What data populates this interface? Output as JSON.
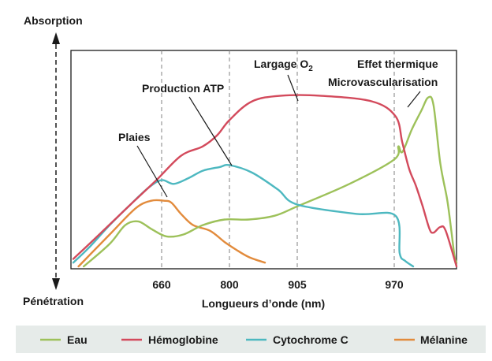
{
  "chart_data": {
    "type": "line",
    "y_top_label": "Absorption",
    "y_bottom_label": "Pénétration",
    "xlabel": "Longueurs d’onde (nm)",
    "x_ticks": [
      "660",
      "800",
      "905",
      "970"
    ],
    "grid": "dashed vertical lines at tick positions",
    "annotations": [
      {
        "text": "Plaies"
      },
      {
        "text": "Production ATP"
      },
      {
        "text": "Largage O",
        "sub": "2"
      },
      {
        "text": "Effet thermique"
      },
      {
        "text": "Microvascularisation"
      }
    ],
    "legend_position": "bottom",
    "series": [
      {
        "name": "Eau",
        "color": "#9dc15a",
        "points": [
          [
            510,
            0.0
          ],
          [
            560,
            0.12
          ],
          [
            590,
            0.22
          ],
          [
            615,
            0.24
          ],
          [
            640,
            0.2
          ],
          [
            670,
            0.16
          ],
          [
            705,
            0.17
          ],
          [
            745,
            0.22
          ],
          [
            790,
            0.25
          ],
          [
            830,
            0.25
          ],
          [
            870,
            0.27
          ],
          [
            905,
            0.32
          ],
          [
            940,
            0.44
          ],
          [
            970,
            0.57
          ],
          [
            985,
            0.64
          ],
          [
            1000,
            0.61
          ],
          [
            1035,
            0.73
          ],
          [
            1070,
            0.83
          ],
          [
            1095,
            0.9
          ],
          [
            1115,
            0.86
          ],
          [
            1140,
            0.55
          ],
          [
            1165,
            0.36
          ],
          [
            1180,
            0.2
          ],
          [
            1192,
            0.06
          ],
          [
            1200,
            0.02
          ]
        ]
      },
      {
        "name": "Hémoglobine",
        "color": "#d34a5c",
        "points": [
          [
            490,
            0.04
          ],
          [
            540,
            0.17
          ],
          [
            600,
            0.33
          ],
          [
            650,
            0.46
          ],
          [
            700,
            0.59
          ],
          [
            745,
            0.64
          ],
          [
            775,
            0.7
          ],
          [
            800,
            0.78
          ],
          [
            835,
            0.88
          ],
          [
            880,
            0.91
          ],
          [
            920,
            0.91
          ],
          [
            955,
            0.88
          ],
          [
            975,
            0.8
          ],
          [
            1000,
            0.66
          ],
          [
            1025,
            0.52
          ],
          [
            1050,
            0.43
          ],
          [
            1075,
            0.32
          ],
          [
            1100,
            0.2
          ],
          [
            1115,
            0.18
          ],
          [
            1140,
            0.21
          ],
          [
            1160,
            0.19
          ],
          [
            1200,
            0.0
          ]
        ]
      },
      {
        "name": "Cytochrome C",
        "color": "#4db8c0",
        "points": [
          [
            490,
            0.02
          ],
          [
            520,
            0.1
          ],
          [
            560,
            0.22
          ],
          [
            600,
            0.33
          ],
          [
            635,
            0.42
          ],
          [
            660,
            0.46
          ],
          [
            685,
            0.44
          ],
          [
            715,
            0.47
          ],
          [
            745,
            0.51
          ],
          [
            780,
            0.53
          ],
          [
            800,
            0.54
          ],
          [
            835,
            0.5
          ],
          [
            875,
            0.41
          ],
          [
            905,
            0.33
          ],
          [
            945,
            0.28
          ],
          [
            975,
            0.27
          ],
          [
            990,
            0.07
          ],
          [
            1010,
            0.03
          ],
          [
            1040,
            0.0
          ]
        ]
      },
      {
        "name": "Mélanine",
        "color": "#e28b3c",
        "points": [
          [
            500,
            0.0
          ],
          [
            560,
            0.17
          ],
          [
            610,
            0.31
          ],
          [
            640,
            0.35
          ],
          [
            665,
            0.35
          ],
          [
            680,
            0.34
          ],
          [
            700,
            0.28
          ],
          [
            725,
            0.22
          ],
          [
            760,
            0.19
          ],
          [
            790,
            0.13
          ],
          [
            810,
            0.09
          ],
          [
            830,
            0.05
          ],
          [
            855,
            0.02
          ]
        ]
      }
    ]
  },
  "legend": {
    "items": [
      {
        "label": "Eau",
        "color": "#9dc15a"
      },
      {
        "label": "Hémoglobine",
        "color": "#d34a5c"
      },
      {
        "label": "Cytochrome C",
        "color": "#4db8c0"
      },
      {
        "label": "Mélanine",
        "color": "#e28b3c"
      }
    ]
  }
}
